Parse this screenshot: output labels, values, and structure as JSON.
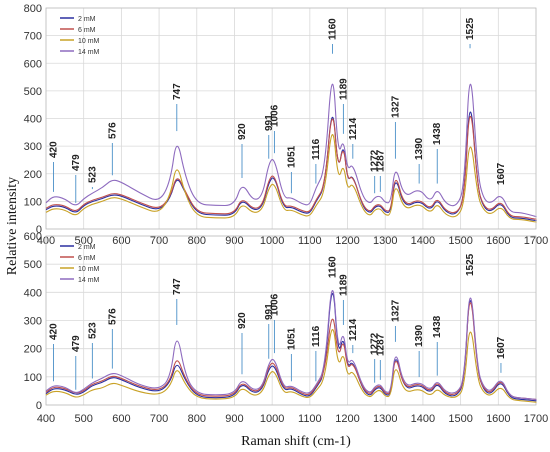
{
  "chart_data": [
    {
      "type": "line",
      "xlabel": "Raman shift (cm-1)",
      "ylabel": "Relative intensity",
      "xlim": [
        400,
        1700
      ],
      "ylim": [
        0,
        800
      ],
      "xticks": [
        400,
        500,
        600,
        700,
        800,
        900,
        1000,
        1100,
        1200,
        1300,
        1400,
        1500,
        1600,
        1700
      ],
      "yticks": [
        0,
        100,
        200,
        300,
        400,
        500,
        600,
        700,
        800
      ],
      "grid": true,
      "legend": "top-left",
      "peak_labels": [
        "420",
        "479",
        "523",
        "576",
        "747",
        "920",
        "991",
        "1006",
        "1051",
        "1116",
        "1160",
        "1189",
        "1214",
        "1272",
        "1287",
        "1327",
        "1390",
        "1438",
        "1525",
        "1607"
      ],
      "series": [
        {
          "name": "2 mM",
          "color": "#2b2fa0",
          "x": [
            400,
            420,
            450,
            479,
            500,
            523,
            550,
            576,
            600,
            650,
            700,
            730,
            747,
            770,
            800,
            850,
            900,
            920,
            950,
            975,
            991,
            1006,
            1030,
            1051,
            1080,
            1100,
            1116,
            1140,
            1160,
            1175,
            1189,
            1200,
            1214,
            1240,
            1260,
            1272,
            1287,
            1300,
            1315,
            1327,
            1350,
            1390,
            1420,
            1438,
            1460,
            1490,
            1510,
            1525,
            1545,
            1560,
            1580,
            1607,
            1630,
            1660,
            1700
          ],
          "y": [
            70,
            85,
            80,
            55,
            85,
            100,
            110,
            125,
            120,
            90,
            65,
            110,
            195,
            130,
            55,
            50,
            50,
            110,
            65,
            80,
            170,
            195,
            75,
            80,
            60,
            55,
            100,
            150,
            480,
            200,
            320,
            170,
            200,
            80,
            55,
            80,
            85,
            60,
            60,
            200,
            75,
            105,
            65,
            110,
            60,
            50,
            115,
            520,
            150,
            80,
            60,
            100,
            40,
            40,
            30
          ]
        },
        {
          "name": "6 mM",
          "color": "#c0504d",
          "x": [
            400,
            420,
            450,
            479,
            500,
            523,
            550,
            576,
            600,
            650,
            700,
            730,
            747,
            770,
            800,
            850,
            900,
            920,
            950,
            975,
            991,
            1006,
            1030,
            1051,
            1080,
            1100,
            1116,
            1140,
            1160,
            1175,
            1189,
            1200,
            1214,
            1240,
            1260,
            1272,
            1287,
            1300,
            1315,
            1327,
            1350,
            1390,
            1420,
            1438,
            1460,
            1490,
            1510,
            1525,
            1545,
            1560,
            1580,
            1607,
            1630,
            1660,
            1700
          ],
          "y": [
            75,
            90,
            85,
            60,
            90,
            105,
            115,
            130,
            125,
            95,
            70,
            115,
            200,
            135,
            60,
            55,
            55,
            115,
            70,
            85,
            180,
            200,
            80,
            85,
            65,
            60,
            105,
            155,
            470,
            205,
            310,
            175,
            195,
            85,
            60,
            85,
            90,
            65,
            65,
            210,
            80,
            110,
            70,
            115,
            65,
            55,
            110,
            500,
            150,
            85,
            65,
            105,
            45,
            45,
            35
          ]
        },
        {
          "name": "10 mM",
          "color": "#c9a227",
          "x": [
            400,
            420,
            450,
            479,
            500,
            523,
            550,
            576,
            600,
            650,
            700,
            730,
            747,
            770,
            800,
            850,
            900,
            920,
            950,
            975,
            991,
            1006,
            1030,
            1051,
            1080,
            1100,
            1116,
            1140,
            1160,
            1175,
            1189,
            1200,
            1214,
            1240,
            1260,
            1272,
            1287,
            1300,
            1315,
            1327,
            1350,
            1390,
            1420,
            1438,
            1460,
            1490,
            1510,
            1525,
            1545,
            1560,
            1580,
            1607,
            1630,
            1660,
            1700
          ],
          "y": [
            60,
            75,
            70,
            45,
            75,
            90,
            100,
            115,
            110,
            80,
            55,
            120,
            245,
            120,
            45,
            40,
            40,
            95,
            55,
            70,
            150,
            170,
            65,
            70,
            50,
            45,
            85,
            130,
            405,
            170,
            240,
            140,
            170,
            70,
            45,
            70,
            75,
            50,
            50,
            175,
            65,
            95,
            55,
            95,
            50,
            40,
            90,
            360,
            120,
            70,
            50,
            85,
            35,
            35,
            25
          ]
        },
        {
          "name": "14 mM",
          "color": "#8e6bbf",
          "x": [
            400,
            420,
            450,
            479,
            500,
            523,
            550,
            576,
            600,
            650,
            700,
            730,
            747,
            770,
            800,
            850,
            900,
            920,
            950,
            975,
            991,
            1006,
            1030,
            1051,
            1080,
            1100,
            1116,
            1140,
            1160,
            1175,
            1189,
            1200,
            1214,
            1240,
            1260,
            1272,
            1287,
            1300,
            1315,
            1327,
            1350,
            1390,
            1420,
            1438,
            1460,
            1490,
            1510,
            1525,
            1545,
            1560,
            1580,
            1607,
            1630,
            1660,
            1700
          ],
          "y": [
            95,
            120,
            110,
            80,
            110,
            130,
            150,
            180,
            170,
            130,
            95,
            170,
            340,
            185,
            90,
            85,
            85,
            170,
            100,
            120,
            240,
            260,
            110,
            115,
            90,
            85,
            150,
            210,
            620,
            260,
            330,
            210,
            240,
            115,
            90,
            115,
            120,
            95,
            95,
            240,
            110,
            150,
            95,
            150,
            90,
            80,
            150,
            640,
            200,
            110,
            90,
            130,
            60,
            60,
            45
          ]
        }
      ]
    },
    {
      "type": "line",
      "xlabel": "Raman shift (cm-1)",
      "ylabel": "Relative intensity",
      "xlim": [
        400,
        1700
      ],
      "ylim": [
        0,
        600
      ],
      "xticks": [
        400,
        500,
        600,
        700,
        800,
        900,
        1000,
        1100,
        1200,
        1300,
        1400,
        1500,
        1600,
        1700
      ],
      "yticks": [
        0,
        100,
        200,
        300,
        400,
        500,
        600
      ],
      "grid": true,
      "legend": "top-left",
      "peak_labels": [
        "420",
        "479",
        "523",
        "576",
        "747",
        "920",
        "991",
        "1006",
        "1051",
        "1116",
        "1160",
        "1189",
        "1214",
        "1272",
        "1287",
        "1327",
        "1390",
        "1438",
        "1525",
        "1607"
      ],
      "series": [
        {
          "name": "2 mM",
          "color": "#2b2fa0",
          "x": [
            400,
            420,
            450,
            479,
            500,
            523,
            550,
            576,
            600,
            650,
            700,
            730,
            747,
            770,
            800,
            850,
            900,
            920,
            950,
            975,
            991,
            1006,
            1030,
            1051,
            1080,
            1100,
            1116,
            1140,
            1160,
            1175,
            1189,
            1200,
            1214,
            1240,
            1260,
            1272,
            1287,
            1300,
            1315,
            1327,
            1350,
            1390,
            1420,
            1438,
            1460,
            1490,
            1510,
            1525,
            1545,
            1560,
            1580,
            1607,
            1630,
            1660,
            1700
          ],
          "y": [
            40,
            60,
            55,
            35,
            45,
            70,
            80,
            100,
            90,
            60,
            45,
            80,
            160,
            85,
            30,
            25,
            30,
            80,
            40,
            55,
            130,
            145,
            50,
            60,
            35,
            30,
            60,
            110,
            480,
            170,
            250,
            130,
            160,
            55,
            30,
            55,
            65,
            35,
            35,
            200,
            50,
            75,
            40,
            80,
            35,
            30,
            80,
            460,
            120,
            55,
            35,
            90,
            25,
            20,
            15
          ]
        },
        {
          "name": "6 mM",
          "color": "#c0504d",
          "x": [
            400,
            420,
            450,
            479,
            500,
            523,
            550,
            576,
            600,
            650,
            700,
            730,
            747,
            770,
            800,
            850,
            900,
            920,
            950,
            975,
            991,
            1006,
            1030,
            1051,
            1080,
            1100,
            1116,
            1140,
            1160,
            1175,
            1189,
            1200,
            1214,
            1240,
            1260,
            1272,
            1287,
            1300,
            1315,
            1327,
            1350,
            1390,
            1420,
            1438,
            1460,
            1490,
            1510,
            1525,
            1545,
            1560,
            1580,
            1607,
            1630,
            1660,
            1700
          ],
          "y": [
            45,
            65,
            60,
            40,
            50,
            75,
            85,
            105,
            95,
            65,
            50,
            85,
            180,
            90,
            35,
            30,
            35,
            85,
            45,
            60,
            140,
            155,
            55,
            65,
            40,
            35,
            65,
            115,
            360,
            160,
            240,
            125,
            155,
            60,
            35,
            60,
            70,
            40,
            40,
            190,
            55,
            80,
            45,
            85,
            40,
            35,
            85,
            450,
            115,
            60,
            40,
            95,
            30,
            25,
            20
          ]
        },
        {
          "name": "10 mM",
          "color": "#c9a227",
          "x": [
            400,
            420,
            450,
            479,
            500,
            523,
            550,
            576,
            600,
            650,
            700,
            730,
            747,
            770,
            800,
            850,
            900,
            920,
            950,
            975,
            991,
            1006,
            1030,
            1051,
            1080,
            1100,
            1116,
            1140,
            1160,
            1175,
            1189,
            1200,
            1214,
            1240,
            1260,
            1272,
            1287,
            1300,
            1315,
            1327,
            1350,
            1390,
            1420,
            1438,
            1460,
            1490,
            1510,
            1525,
            1545,
            1560,
            1580,
            1607,
            1630,
            1660,
            1700
          ],
          "y": [
            35,
            50,
            45,
            25,
            35,
            55,
            60,
            80,
            70,
            45,
            35,
            65,
            140,
            70,
            25,
            20,
            25,
            65,
            30,
            45,
            110,
            125,
            40,
            50,
            30,
            25,
            50,
            90,
            320,
            130,
            190,
            100,
            125,
            45,
            25,
            45,
            55,
            30,
            30,
            155,
            40,
            60,
            30,
            60,
            30,
            25,
            60,
            320,
            90,
            45,
            30,
            70,
            20,
            15,
            10
          ]
        },
        {
          "name": "14 mM",
          "color": "#8e6bbf",
          "x": [
            400,
            420,
            450,
            479,
            500,
            523,
            550,
            576,
            600,
            650,
            700,
            730,
            747,
            770,
            800,
            850,
            900,
            920,
            950,
            975,
            991,
            1006,
            1030,
            1051,
            1080,
            1100,
            1116,
            1140,
            1160,
            1175,
            1189,
            1200,
            1214,
            1240,
            1260,
            1272,
            1287,
            1300,
            1315,
            1327,
            1350,
            1390,
            1420,
            1438,
            1460,
            1490,
            1510,
            1525,
            1545,
            1560,
            1580,
            1607,
            1630,
            1660,
            1700
          ],
          "y": [
            50,
            70,
            65,
            40,
            55,
            80,
            95,
            115,
            105,
            70,
            55,
            95,
            270,
            100,
            40,
            35,
            40,
            95,
            50,
            65,
            150,
            170,
            60,
            70,
            45,
            40,
            70,
            125,
            490,
            180,
            270,
            140,
            170,
            65,
            40,
            65,
            75,
            45,
            45,
            210,
            60,
            85,
            50,
            90,
            45,
            40,
            90,
            470,
            125,
            65,
            45,
            100,
            30,
            25,
            20
          ]
        }
      ]
    }
  ]
}
